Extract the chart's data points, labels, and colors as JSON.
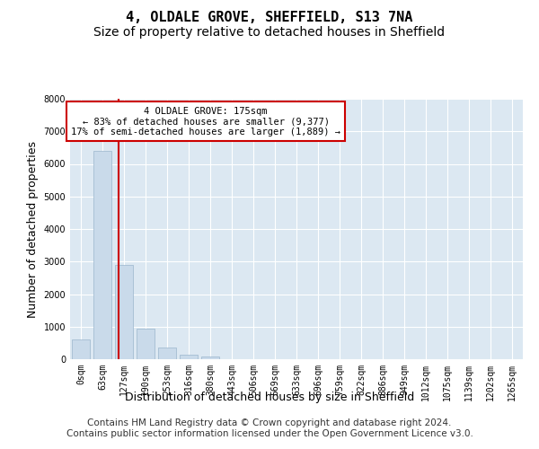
{
  "title": "4, OLDALE GROVE, SHEFFIELD, S13 7NA",
  "subtitle": "Size of property relative to detached houses in Sheffield",
  "xlabel": "Distribution of detached houses by size in Sheffield",
  "ylabel": "Number of detached properties",
  "bar_color": "#c9daea",
  "bar_edge_color": "#9ab5cc",
  "vline_color": "#cc0000",
  "vline_pos": 1.76,
  "annotation_text": "4 OLDALE GROVE: 175sqm\n← 83% of detached houses are smaller (9,377)\n17% of semi-detached houses are larger (1,889) →",
  "footer_line1": "Contains HM Land Registry data © Crown copyright and database right 2024.",
  "footer_line2": "Contains public sector information licensed under the Open Government Licence v3.0.",
  "categories": [
    "0sqm",
    "63sqm",
    "127sqm",
    "190sqm",
    "253sqm",
    "316sqm",
    "380sqm",
    "443sqm",
    "506sqm",
    "569sqm",
    "633sqm",
    "696sqm",
    "759sqm",
    "822sqm",
    "886sqm",
    "949sqm",
    "1012sqm",
    "1075sqm",
    "1139sqm",
    "1202sqm",
    "1265sqm"
  ],
  "values": [
    600,
    6400,
    2900,
    950,
    370,
    150,
    70,
    0,
    0,
    0,
    0,
    0,
    0,
    0,
    0,
    0,
    0,
    0,
    0,
    0,
    0
  ],
  "ylim": [
    0,
    8000
  ],
  "yticks": [
    0,
    1000,
    2000,
    3000,
    4000,
    5000,
    6000,
    7000,
    8000
  ],
  "background_color": "#dce8f2",
  "grid_color": "#ffffff",
  "title_fontsize": 11,
  "subtitle_fontsize": 10,
  "axis_label_fontsize": 9,
  "tick_fontsize": 7,
  "footer_fontsize": 7.5
}
